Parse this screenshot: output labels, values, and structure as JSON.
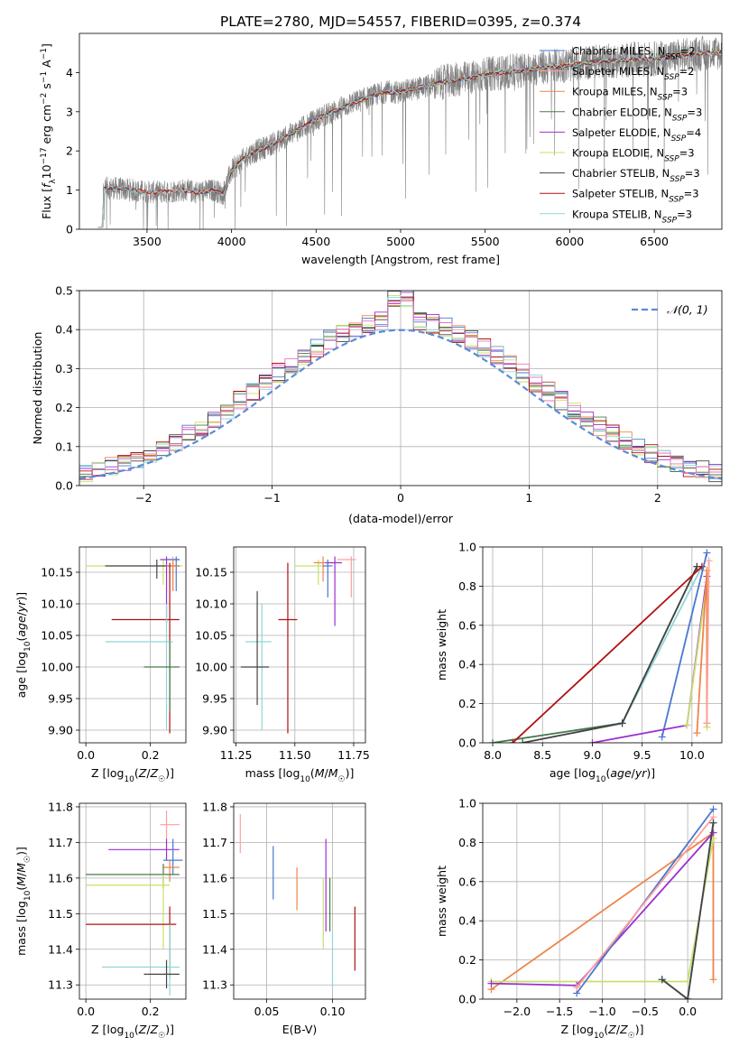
{
  "figure_title": "PLATE=2780, MJD=54557, FIBERID=0395, z=0.374",
  "chart_data": [
    {
      "id": "spectrum",
      "type": "line",
      "xlabel": "wavelength [Angstrom, rest frame]",
      "ylabel": "Flux [f_λ 10^-17 erg cm^-2 s^-1 A^-1]",
      "xlim": [
        3100,
        6900
      ],
      "ylim": [
        0,
        5
      ],
      "xticks": [
        3500,
        4000,
        4500,
        5000,
        5500,
        6000,
        6500
      ],
      "yticks": [
        0,
        1,
        2,
        3,
        4
      ],
      "grid": false,
      "legend_position": "top-right",
      "observed_color": "#808080",
      "continuum": {
        "x": [
          3210,
          3240,
          3300,
          3400,
          3500,
          3600,
          3700,
          3800,
          3900,
          3950,
          4000,
          4100,
          4200,
          4300,
          4400,
          4500,
          4600,
          4700,
          4800,
          4900,
          5000,
          5100,
          5200,
          5300,
          5400,
          5500,
          5600,
          5700,
          5800,
          5900,
          6000,
          6100,
          6200,
          6300,
          6400,
          6500,
          6600,
          6700,
          6800
        ],
        "y": [
          0.05,
          1.05,
          1.05,
          1.0,
          0.95,
          0.95,
          1.0,
          0.95,
          1.0,
          0.9,
          1.5,
          1.9,
          2.1,
          2.3,
          2.55,
          2.8,
          3.0,
          3.2,
          3.35,
          3.5,
          3.5,
          3.6,
          3.7,
          3.8,
          3.85,
          3.95,
          4.0,
          4.05,
          4.1,
          4.15,
          4.2,
          4.25,
          4.3,
          4.3,
          4.35,
          4.35,
          4.4,
          4.45,
          4.5
        ]
      },
      "series": [
        {
          "name": "Chabrier MILES, N_SSP=2",
          "name_main": "Chabrier MILES, N",
          "name_sub": "SSP",
          "name_tail": "=2",
          "color": "#4878d0",
          "x_range": [
            3450,
            6900
          ]
        },
        {
          "name": "Salpeter MILES, N_SSP=2",
          "name_main": "Salpeter MILES, N",
          "name_sub": "SSP",
          "name_tail": "=2",
          "color": "#ff9f9b",
          "x_range": [
            3450,
            6900
          ]
        },
        {
          "name": "Kroupa MILES, N_SSP=3",
          "name_main": "Kroupa MILES, N",
          "name_sub": "SSP",
          "name_tail": "=3",
          "color": "#ee854a",
          "x_range": [
            3450,
            6900
          ]
        },
        {
          "name": "Chabrier ELODIE, N_SSP=3",
          "name_main": "Chabrier ELODIE, N",
          "name_sub": "SSP",
          "name_tail": "=3",
          "color": "#4a7a4a",
          "x_range": [
            3900,
            6900
          ]
        },
        {
          "name": "Salpeter ELODIE, N_SSP=4",
          "name_main": "Salpeter ELODIE, N",
          "name_sub": "SSP",
          "name_tail": "=4",
          "color": "#9b30d0",
          "x_range": [
            3900,
            6900
          ]
        },
        {
          "name": "Kroupa ELODIE, N_SSP=3",
          "name_main": "Kroupa ELODIE, N",
          "name_sub": "SSP",
          "name_tail": "=3",
          "color": "#c8e06a",
          "x_range": [
            3900,
            6900
          ]
        },
        {
          "name": "Chabrier STELIB, N_SSP=3",
          "name_main": "Chabrier STELIB, N",
          "name_sub": "SSP",
          "name_tail": "=3",
          "color": "#444444",
          "x_range": [
            3210,
            6900
          ]
        },
        {
          "name": "Salpeter STELIB, N_SSP=3",
          "name_main": "Salpeter STELIB, N",
          "name_sub": "SSP",
          "name_tail": "=3",
          "color": "#b01010",
          "x_range": [
            3210,
            6900
          ]
        },
        {
          "name": "Kroupa STELIB, N_SSP=3",
          "name_main": "Kroupa STELIB, N",
          "name_sub": "SSP",
          "name_tail": "=3",
          "color": "#8fd7d7",
          "x_range": [
            3210,
            6900
          ]
        }
      ]
    },
    {
      "id": "residuals",
      "type": "line",
      "xlabel": "(data-model)/error",
      "ylabel": "Normed distribution",
      "xlim": [
        -2.5,
        2.5
      ],
      "ylim": [
        0,
        0.5
      ],
      "xticks": [
        -2,
        -1,
        0,
        1,
        2
      ],
      "yticks": [
        0.0,
        0.1,
        0.2,
        0.3,
        0.4,
        0.5
      ],
      "grid": true,
      "legend": "𝒩(0, 1)",
      "normal_color": "#5b8bd8",
      "hist_colors": [
        "#4878d0",
        "#ee854a",
        "#4a7a4a",
        "#9b30d0",
        "#c8e06a",
        "#444444",
        "#b01010",
        "#8fd7d7",
        "#e377c2"
      ],
      "bin_width": 0.1
    },
    {
      "id": "age_vs_Z",
      "type": "scatter",
      "xlabel": "Z [log10(Z/Z☉)]",
      "ylabel": "age  [log10(age/yr)]",
      "xlim": [
        -0.02,
        0.31
      ],
      "ylim": [
        9.88,
        10.19
      ],
      "xticks": [
        0.0,
        0.2
      ],
      "yticks": [
        9.9,
        9.95,
        10.0,
        10.05,
        10.1,
        10.15
      ],
      "grid": true,
      "points": [
        {
          "x": 0.24,
          "y": 10.16,
          "xerr": [
            0.24,
            0.06
          ],
          "yerr": [
            0.03,
            0.01
          ],
          "color": "#c8e06a"
        },
        {
          "x": 0.22,
          "y": 10.16,
          "xerr": [
            0.16,
            0.07
          ],
          "yerr": [
            0.02,
            0.01
          ],
          "color": "#444444"
        },
        {
          "x": 0.25,
          "y": 10.17,
          "xerr": [
            0.02,
            0.04
          ],
          "yerr": [
            0.1,
            0.005
          ],
          "color": "#9b30d0"
        },
        {
          "x": 0.27,
          "y": 10.17,
          "xerr": [
            0.02,
            0.02
          ],
          "yerr": [
            0.05,
            0.005
          ],
          "color": "#ff9f9b"
        },
        {
          "x": 0.28,
          "y": 10.17,
          "xerr": [
            0.03,
            0.01
          ],
          "yerr": [
            0.05,
            0.005
          ],
          "color": "#4878d0"
        },
        {
          "x": 0.27,
          "y": 10.16,
          "xerr": [
            0.02,
            0.02
          ],
          "yerr": [
            0.04,
            0.01
          ],
          "color": "#ee854a"
        },
        {
          "x": 0.26,
          "y": 10.075,
          "xerr": [
            0.18,
            0.03
          ],
          "yerr": [
            0.18,
            0.09
          ],
          "color": "#b01010"
        },
        {
          "x": 0.25,
          "y": 10.04,
          "xerr": [
            0.19,
            0.02
          ],
          "yerr": [
            0.14,
            0.06
          ],
          "color": "#8fd7d7"
        },
        {
          "x": 0.26,
          "y": 10.0,
          "xerr": [
            0.08,
            0.03
          ],
          "yerr": [
            0.07,
            0.04
          ],
          "color": "#4a7a4a"
        }
      ]
    },
    {
      "id": "age_vs_mass",
      "type": "scatter",
      "xlabel": "mass [log10(M/M☉)]",
      "ylabel": "",
      "xlim": [
        11.24,
        11.8
      ],
      "ylim": [
        9.88,
        10.19
      ],
      "xticks": [
        11.25,
        11.5,
        11.75
      ],
      "yticks": [
        9.9,
        9.95,
        10.0,
        10.05,
        10.1,
        10.15
      ],
      "grid": true,
      "points": [
        {
          "x": 11.6,
          "y": 10.16,
          "xerr": [
            0.1,
            0.02
          ],
          "yerr": [
            0.03,
            0.01
          ],
          "color": "#c8e06a"
        },
        {
          "x": 11.62,
          "y": 10.165,
          "xerr": [
            0.04,
            0.04
          ],
          "yerr": [
            0.03,
            0.01
          ],
          "color": "#ee854a"
        },
        {
          "x": 11.67,
          "y": 10.165,
          "xerr": [
            0.04,
            0.03
          ],
          "yerr": [
            0.1,
            0.01
          ],
          "color": "#9b30d0"
        },
        {
          "x": 11.74,
          "y": 10.17,
          "xerr": [
            0.06,
            0.02
          ],
          "yerr": [
            0.06,
            0.005
          ],
          "color": "#ff9f9b"
        },
        {
          "x": 11.64,
          "y": 10.16,
          "xerr": [
            0.02,
            0.02
          ],
          "yerr": [
            0.05,
            0.01
          ],
          "color": "#4878d0"
        },
        {
          "x": 11.47,
          "y": 10.075,
          "xerr": [
            0.04,
            0.04
          ],
          "yerr": [
            0.18,
            0.09
          ],
          "color": "#b01010"
        },
        {
          "x": 11.36,
          "y": 10.04,
          "xerr": [
            0.07,
            0.04
          ],
          "yerr": [
            0.14,
            0.06
          ],
          "color": "#8fd7d7"
        },
        {
          "x": 11.34,
          "y": 10.0,
          "xerr": [
            0.07,
            0.05
          ],
          "yerr": [
            0.06,
            0.12
          ],
          "color": "#444444"
        }
      ]
    },
    {
      "id": "weight_vs_age",
      "type": "line",
      "xlabel": "age  [log10(age/yr)]",
      "ylabel": "mass weight",
      "xlim": [
        7.9,
        10.3
      ],
      "ylim": [
        0,
        1
      ],
      "xticks": [
        8.0,
        8.5,
        9.0,
        9.5,
        10.0
      ],
      "yticks": [
        0.0,
        0.2,
        0.4,
        0.6,
        0.8,
        1.0
      ],
      "grid": true,
      "series": [
        {
          "color": "#8fd7d7",
          "x": [
            8.0,
            9.3,
            10.1
          ],
          "y": [
            0.0,
            0.1,
            0.9
          ]
        },
        {
          "color": "#4a7a4a",
          "x": [
            8.0,
            9.3,
            10.05
          ],
          "y": [
            0.0,
            0.1,
            0.9
          ]
        },
        {
          "color": "#444444",
          "x": [
            8.3,
            9.3,
            10.05
          ],
          "y": [
            0.0,
            0.1,
            0.9
          ]
        },
        {
          "color": "#b01010",
          "x": [
            8.2,
            10.1
          ],
          "y": [
            0.0,
            0.9
          ]
        },
        {
          "color": "#4878d0",
          "x": [
            9.7,
            10.15
          ],
          "y": [
            0.03,
            0.97
          ]
        },
        {
          "color": "#9b30d0",
          "x": [
            9.0,
            9.95,
            10.15
          ],
          "y": [
            0.0,
            0.09,
            0.85
          ]
        },
        {
          "color": "#c8e06a",
          "x": [
            9.95,
            10.15,
            10.15
          ],
          "y": [
            0.09,
            0.82,
            0.08
          ]
        },
        {
          "color": "#ee854a",
          "x": [
            10.05,
            10.15,
            10.15
          ],
          "y": [
            0.05,
            0.88,
            0.1
          ]
        },
        {
          "color": "#ff9f9b",
          "x": [
            10.15,
            10.17
          ],
          "y": [
            0.1,
            0.93
          ]
        }
      ]
    },
    {
      "id": "mass_vs_Z",
      "type": "scatter",
      "xlabel": "Z [log10(Z/Z☉)]",
      "ylabel": "mass [log10(M/M☉)]",
      "xlim": [
        -0.02,
        0.31
      ],
      "ylim": [
        11.26,
        11.81
      ],
      "xticks": [
        0.0,
        0.2
      ],
      "yticks": [
        11.3,
        11.4,
        11.5,
        11.6,
        11.7,
        11.8
      ],
      "grid": true,
      "points": [
        {
          "x": 0.25,
          "y": 11.75,
          "xerr": [
            0.02,
            0.04
          ],
          "yerr": [
            0.04,
            0.04
          ],
          "color": "#ff9f9b"
        },
        {
          "x": 0.25,
          "y": 11.68,
          "xerr": [
            0.18,
            0.04
          ],
          "yerr": [
            0.03,
            0.03
          ],
          "color": "#9b30d0"
        },
        {
          "x": 0.27,
          "y": 11.65,
          "xerr": [
            0.03,
            0.03
          ],
          "yerr": [
            0.04,
            0.06
          ],
          "color": "#4878d0"
        },
        {
          "x": 0.26,
          "y": 11.63,
          "xerr": [
            0.02,
            0.03
          ],
          "yerr": [
            0.04,
            0.02
          ],
          "color": "#ee854a"
        },
        {
          "x": 0.24,
          "y": 11.61,
          "xerr": [
            0.24,
            0.05
          ],
          "yerr": [
            0.04,
            0.03
          ],
          "color": "#4a7a4a"
        },
        {
          "x": 0.24,
          "y": 11.58,
          "xerr": [
            0.24,
            0.02
          ],
          "yerr": [
            0.18,
            0.03
          ],
          "color": "#c8e06a"
        },
        {
          "x": 0.26,
          "y": 11.47,
          "xerr": [
            0.26,
            0.02
          ],
          "yerr": [
            0.15,
            0.05
          ],
          "color": "#b01010"
        },
        {
          "x": 0.26,
          "y": 11.35,
          "xerr": [
            0.21,
            0.03
          ],
          "yerr": [
            0.08,
            0.12
          ],
          "color": "#8fd7d7"
        },
        {
          "x": 0.25,
          "y": 11.33,
          "xerr": [
            0.07,
            0.04
          ],
          "yerr": [
            0.04,
            0.04
          ],
          "color": "#444444"
        }
      ]
    },
    {
      "id": "mass_vs_EBV",
      "type": "scatter",
      "xlabel": "E(B-V)",
      "ylabel": "",
      "xlim": [
        0.025,
        0.125
      ],
      "ylim": [
        11.26,
        11.81
      ],
      "xticks": [
        0.05,
        0.1
      ],
      "yticks": [
        11.3,
        11.4,
        11.5,
        11.6,
        11.7,
        11.8
      ],
      "grid": true,
      "points": [
        {
          "x": 0.03,
          "y": 11.73,
          "yerr": [
            0.06,
            0.05
          ],
          "color": "#ff9f9b"
        },
        {
          "x": 0.055,
          "y": 11.61,
          "yerr": [
            0.07,
            0.08
          ],
          "color": "#4878d0"
        },
        {
          "x": 0.073,
          "y": 11.57,
          "yerr": [
            0.06,
            0.06
          ],
          "color": "#ee854a"
        },
        {
          "x": 0.095,
          "y": 11.61,
          "yerr": [
            0.16,
            0.1
          ],
          "color": "#9b30d0"
        },
        {
          "x": 0.093,
          "y": 11.5,
          "yerr": [
            0.1,
            0.1
          ],
          "color": "#c8e06a"
        },
        {
          "x": 0.098,
          "y": 11.53,
          "yerr": [
            0.08,
            0.07
          ],
          "color": "#4a7a4a"
        },
        {
          "x": 0.1,
          "y": 11.37,
          "yerr": [
            0.08,
            0.08
          ],
          "color": "#8fd7d7"
        },
        {
          "x": 0.117,
          "y": 11.43,
          "yerr": [
            0.09,
            0.09
          ],
          "color": "#b01010"
        }
      ]
    },
    {
      "id": "weight_vs_Z",
      "type": "line",
      "xlabel": "Z [log10(Z/Z☉)]",
      "ylabel": "mass weight",
      "xlim": [
        -2.4,
        0.4
      ],
      "ylim": [
        0,
        1
      ],
      "xticks": [
        -2.0,
        -1.5,
        -1.0,
        -0.5,
        0.0
      ],
      "yticks": [
        0.0,
        0.2,
        0.4,
        0.6,
        0.8,
        1.0
      ],
      "grid": true,
      "series": [
        {
          "color": "#ee854a",
          "x": [
            -2.3,
            0.3,
            0.3
          ],
          "y": [
            0.05,
            0.85,
            0.1
          ]
        },
        {
          "color": "#c8e06a",
          "x": [
            -2.3,
            0.0,
            0.3
          ],
          "y": [
            0.09,
            0.09,
            0.82
          ]
        },
        {
          "color": "#9b30d0",
          "x": [
            -2.3,
            -1.3,
            0.3
          ],
          "y": [
            0.08,
            0.07,
            0.85
          ]
        },
        {
          "color": "#4878d0",
          "x": [
            -1.3,
            0.3
          ],
          "y": [
            0.03,
            0.97
          ]
        },
        {
          "color": "#ff9f9b",
          "x": [
            -1.3,
            0.3
          ],
          "y": [
            0.06,
            0.93
          ]
        },
        {
          "color": "#4a7a4a",
          "x": [
            -0.3,
            0.0,
            0.3
          ],
          "y": [
            0.1,
            0.0,
            0.9
          ]
        },
        {
          "color": "#8fd7d7",
          "x": [
            -0.3,
            0.0,
            0.3
          ],
          "y": [
            0.1,
            0.0,
            0.9
          ]
        },
        {
          "color": "#444444",
          "x": [
            -0.3,
            0.0,
            0.3
          ],
          "y": [
            0.1,
            0.0,
            0.9
          ]
        }
      ]
    }
  ]
}
